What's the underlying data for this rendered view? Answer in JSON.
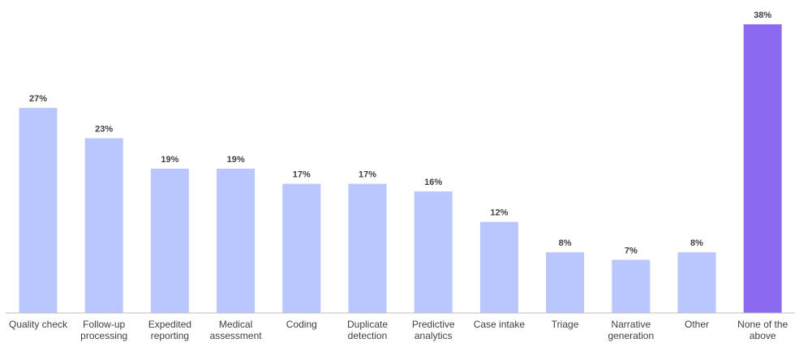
{
  "chart_data": {
    "type": "bar",
    "title": "",
    "xlabel": "",
    "ylabel": "",
    "ylim": [
      0,
      38
    ],
    "grid": false,
    "legend": "none",
    "categories": [
      [
        "Quality check"
      ],
      [
        "Follow-up",
        "processing"
      ],
      [
        "Expedited",
        "reporting"
      ],
      [
        "Medical",
        "assessment"
      ],
      [
        "Coding"
      ],
      [
        "Duplicate",
        "detection"
      ],
      [
        "Predictive",
        "analytics"
      ],
      [
        "Case intake"
      ],
      [
        "Triage"
      ],
      [
        "Narrative",
        "generation"
      ],
      [
        "Other"
      ],
      [
        "None of the",
        "above"
      ]
    ],
    "values": [
      27,
      23,
      19,
      19,
      17,
      17,
      16,
      12,
      8,
      7,
      8,
      38
    ],
    "value_labels": [
      "27%",
      "23%",
      "19%",
      "19%",
      "17%",
      "17%",
      "16%",
      "12%",
      "8%",
      "7%",
      "8%",
      "38%"
    ],
    "colors": {
      "bar": "#b9c7fe",
      "highlight_bar": "#8b69f1",
      "axis": "#bfbfbf",
      "text": "#404040"
    },
    "highlight_index": 11
  }
}
